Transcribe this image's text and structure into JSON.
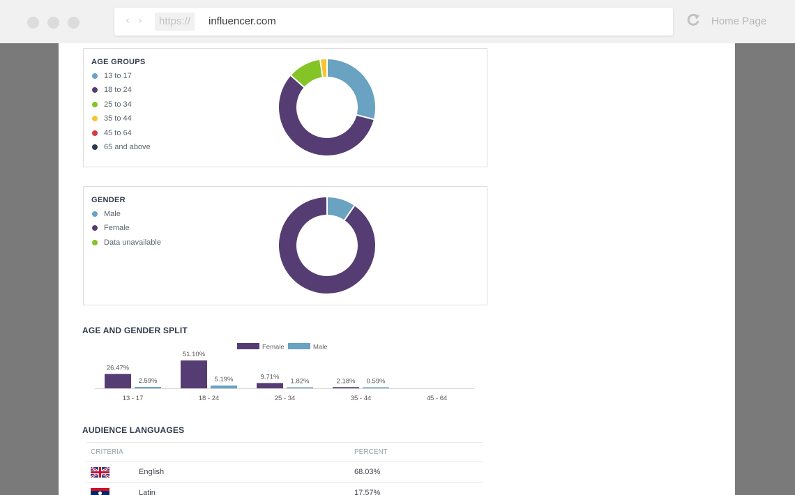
{
  "browser": {
    "scheme": "https://",
    "host": "influencer.com",
    "home_label": "Home Page"
  },
  "age_groups": {
    "title": "AGE GROUPS",
    "legend": [
      {
        "label": "13 to 17",
        "color": "#6aa2c1"
      },
      {
        "label": "18 to 24",
        "color": "#553d73"
      },
      {
        "label": "25 to 34",
        "color": "#84c427"
      },
      {
        "label": "35 to 44",
        "color": "#f7c52e"
      },
      {
        "label": "45 to 64",
        "color": "#d73a3f"
      },
      {
        "label": "65 and above",
        "color": "#2b3a4e"
      }
    ]
  },
  "gender": {
    "title": "GENDER",
    "legend": [
      {
        "label": "Male",
        "color": "#6aa2c1"
      },
      {
        "label": "Female",
        "color": "#553d73"
      },
      {
        "label": "Data unavailable",
        "color": "#84c427"
      }
    ]
  },
  "split": {
    "title": "AGE AND GENDER SPLIT"
  },
  "languages": {
    "title": "AUDIENCE LANGUAGES",
    "header": {
      "criteria": "CRITERIA",
      "percent": "PERCENT"
    },
    "rows": [
      {
        "language": "English",
        "percent": "68.03%",
        "flag": "uk-flag-icon"
      },
      {
        "language": "Latin",
        "percent": "17.57%",
        "flag": "laos-flag-icon"
      }
    ]
  },
  "chart_data": [
    {
      "type": "pie",
      "variant": "donut",
      "labels": [
        "13 to 17",
        "18 to 24",
        "25 to 34",
        "35 to 44",
        "45 to 64",
        "65 and above"
      ],
      "values": [
        29.0,
        57.5,
        11.2,
        2.3,
        0,
        0
      ],
      "colors": [
        "#6aa2c1",
        "#553d73",
        "#84c427",
        "#f7c52e",
        "#d73a3f",
        "#2b3a4e"
      ],
      "legend": "left"
    },
    {
      "type": "pie",
      "variant": "donut",
      "labels": [
        "Male",
        "Female",
        "Data unavailable"
      ],
      "values": [
        9.6,
        90.4,
        0
      ],
      "colors": [
        "#6aa2c1",
        "#553d73",
        "#84c427"
      ],
      "legend": "left"
    },
    {
      "type": "bar",
      "categories": [
        "13 - 17",
        "18 - 24",
        "25 - 34",
        "35 - 44",
        "45 - 64"
      ],
      "series": [
        {
          "name": "Female",
          "color": "#553d73",
          "values": [
            26.47,
            51.1,
            9.71,
            2.18,
            null
          ],
          "labels": [
            "26.47%",
            "51.10%",
            "9.71%",
            "2.18%",
            ""
          ]
        },
        {
          "name": "Male",
          "color": "#6aa2c1",
          "values": [
            2.59,
            5.19,
            1.82,
            0.59,
            null
          ],
          "labels": [
            "2.59%",
            "5.19%",
            "1.82%",
            "0.59%",
            ""
          ]
        }
      ],
      "ylim": [
        0,
        51.1
      ],
      "legend": "top-center",
      "grid": false
    }
  ]
}
